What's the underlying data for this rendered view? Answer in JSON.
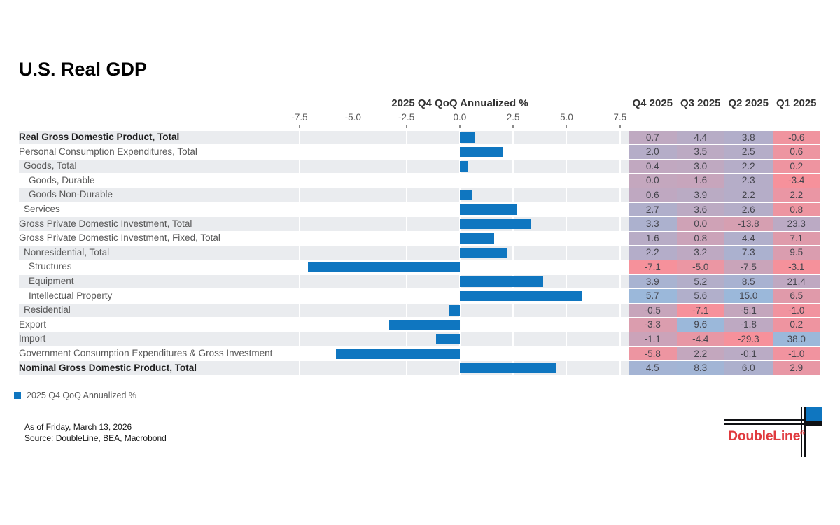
{
  "page": {
    "title": "U.S. Real GDP"
  },
  "colors": {
    "bar": "#0F76C0",
    "stripe": "#EAECEF",
    "heat_min": "#F6919B",
    "heat_max": "#9BB8DA",
    "logo_red": "#E03A3E",
    "logo_blue": "#0F76C0"
  },
  "chart_data": {
    "type": "bar",
    "orientation": "horizontal",
    "title": "2025 Q4 QoQ Annualized %",
    "bar_series": "Q4 2025",
    "x_ticks": [
      -7.5,
      -5.0,
      -2.5,
      0.0,
      2.5,
      5.0,
      7.5
    ],
    "x_tick_labels": [
      "-7.5",
      "-5.0",
      "-2.5",
      "0.0",
      "2.5",
      "5.0",
      "7.5"
    ],
    "xlim": [
      -8.8,
      8.8
    ],
    "grid": true,
    "heatmap_scale": "per-column red(min) to blue(max)",
    "table_columns": [
      "Q4 2025",
      "Q3 2025",
      "Q2 2025",
      "Q1 2025"
    ],
    "rows": [
      {
        "label": "Real Gross Domestic Product, Total",
        "bold": true,
        "indent": 0,
        "values": [
          0.7,
          4.4,
          3.8,
          -0.6
        ]
      },
      {
        "label": "Personal Consumption Expenditures, Total",
        "bold": false,
        "indent": 0,
        "values": [
          2.0,
          3.5,
          2.5,
          0.6
        ]
      },
      {
        "label": "Goods, Total",
        "bold": false,
        "indent": 1,
        "values": [
          0.4,
          3.0,
          2.2,
          0.2
        ]
      },
      {
        "label": "Goods, Durable",
        "bold": false,
        "indent": 2,
        "values": [
          0.0,
          1.6,
          2.3,
          -3.4
        ]
      },
      {
        "label": "Goods Non-Durable",
        "bold": false,
        "indent": 2,
        "values": [
          0.6,
          3.9,
          2.2,
          2.2
        ]
      },
      {
        "label": "Services",
        "bold": false,
        "indent": 1,
        "values": [
          2.7,
          3.6,
          2.6,
          0.8
        ]
      },
      {
        "label": "Gross Private Domestic Investment, Total",
        "bold": false,
        "indent": 0,
        "values": [
          3.3,
          0.0,
          -13.8,
          23.3
        ]
      },
      {
        "label": "Gross Private Domestic Investment, Fixed, Total",
        "bold": false,
        "indent": 0,
        "values": [
          1.6,
          0.8,
          4.4,
          7.1
        ]
      },
      {
        "label": "Nonresidential, Total",
        "bold": false,
        "indent": 1,
        "values": [
          2.2,
          3.2,
          7.3,
          9.5
        ]
      },
      {
        "label": "Structures",
        "bold": false,
        "indent": 2,
        "values": [
          -7.1,
          -5.0,
          -7.5,
          -3.1
        ]
      },
      {
        "label": "Equipment",
        "bold": false,
        "indent": 2,
        "values": [
          3.9,
          5.2,
          8.5,
          21.4
        ]
      },
      {
        "label": "Intellectual Property",
        "bold": false,
        "indent": 2,
        "values": [
          5.7,
          5.6,
          15.0,
          6.5
        ]
      },
      {
        "label": "Residential",
        "bold": false,
        "indent": 1,
        "values": [
          -0.5,
          -7.1,
          -5.1,
          -1.0
        ]
      },
      {
        "label": "Export",
        "bold": false,
        "indent": 0,
        "values": [
          -3.3,
          9.6,
          -1.8,
          0.2
        ]
      },
      {
        "label": "Import",
        "bold": false,
        "indent": 0,
        "values": [
          -1.1,
          -4.4,
          -29.3,
          38.0
        ]
      },
      {
        "label": "Government Consumption Expenditures & Gross Investment",
        "bold": false,
        "indent": 0,
        "values": [
          -5.8,
          2.2,
          -0.1,
          -1.0
        ]
      },
      {
        "label": "Nominal Gross Domestic Product, Total",
        "bold": true,
        "indent": 0,
        "values": [
          4.5,
          8.3,
          6.0,
          2.9
        ]
      }
    ]
  },
  "legend": {
    "label": "2025 Q4 QoQ Annualized %"
  },
  "footer": {
    "as_of": "As of Friday, March 13, 2026",
    "source": "Source: DoubleLine, BEA, Macrobond"
  },
  "logo": {
    "text": "DoubleLine",
    "reg": "®"
  }
}
